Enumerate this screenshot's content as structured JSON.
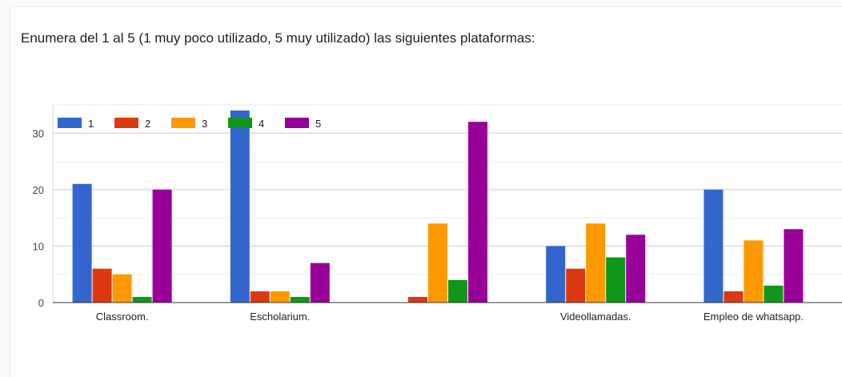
{
  "page": {
    "question_title": "Enumera del 1 al  5 (1 muy poco utilizado, 5 muy utilizado) las siguientes plataformas:"
  },
  "chart_data": {
    "type": "bar",
    "title": "",
    "xlabel": "",
    "ylabel": "",
    "ylim": [
      0,
      35
    ],
    "y_ticks": [
      0,
      10,
      20,
      30
    ],
    "minor_gridlines": true,
    "legend_position": "top-left",
    "categories": [
      "Classroom.",
      "Escholarium.",
      "",
      "Videollamadas.",
      "Empleo de whatsapp."
    ],
    "series": [
      {
        "name": "1",
        "color": "#3366cc",
        "values": [
          21,
          34,
          0,
          10,
          20
        ]
      },
      {
        "name": "2",
        "color": "#dc3912",
        "values": [
          6,
          2,
          1,
          6,
          2
        ]
      },
      {
        "name": "3",
        "color": "#ff9900",
        "values": [
          5,
          2,
          14,
          14,
          11
        ]
      },
      {
        "name": "4",
        "color": "#109618",
        "values": [
          1,
          1,
          4,
          8,
          3
        ]
      },
      {
        "name": "5",
        "color": "#990099",
        "values": [
          20,
          7,
          32,
          12,
          13
        ]
      }
    ]
  }
}
